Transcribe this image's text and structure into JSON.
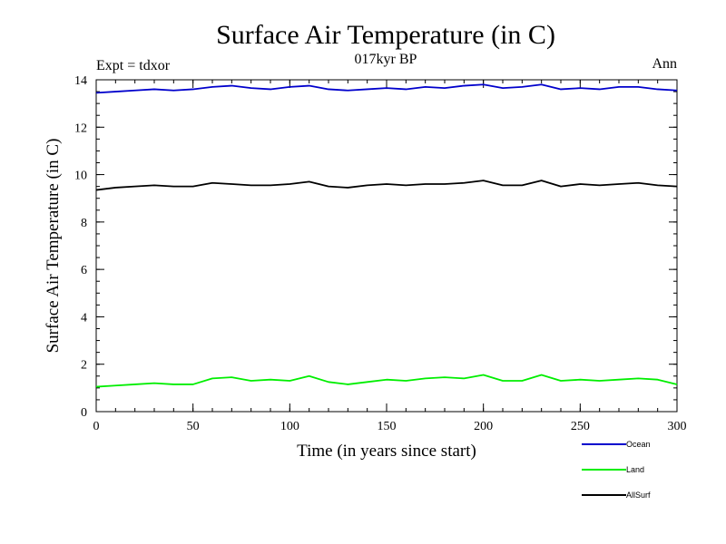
{
  "chart_data": {
    "type": "line",
    "title": "Surface Air Temperature (in C)",
    "subtitle": "017kyr BP",
    "annotation_left": "Expt = tdxor",
    "annotation_right": "Ann",
    "xlabel": "Time (in years since start)",
    "ylabel": "Surface Air Temperature (in C)",
    "xlim": [
      0,
      300
    ],
    "ylim": [
      0,
      14
    ],
    "xticks": [
      0,
      50,
      100,
      150,
      200,
      250,
      300
    ],
    "yticks": [
      0,
      2,
      4,
      6,
      8,
      10,
      12,
      14
    ],
    "grid": false,
    "legend_position": "bottom-right",
    "series": [
      {
        "name": "Ocean",
        "color": "#0000cc",
        "points": [
          [
            0,
            13.45
          ],
          [
            10,
            13.5
          ],
          [
            20,
            13.55
          ],
          [
            30,
            13.6
          ],
          [
            40,
            13.55
          ],
          [
            50,
            13.6
          ],
          [
            60,
            13.7
          ],
          [
            70,
            13.75
          ],
          [
            80,
            13.65
          ],
          [
            90,
            13.6
          ],
          [
            100,
            13.7
          ],
          [
            110,
            13.75
          ],
          [
            120,
            13.6
          ],
          [
            130,
            13.55
          ],
          [
            140,
            13.6
          ],
          [
            150,
            13.65
          ],
          [
            160,
            13.6
          ],
          [
            170,
            13.7
          ],
          [
            180,
            13.65
          ],
          [
            190,
            13.75
          ],
          [
            200,
            13.8
          ],
          [
            210,
            13.65
          ],
          [
            220,
            13.7
          ],
          [
            230,
            13.8
          ],
          [
            240,
            13.6
          ],
          [
            250,
            13.65
          ],
          [
            260,
            13.6
          ],
          [
            270,
            13.7
          ],
          [
            280,
            13.7
          ],
          [
            290,
            13.6
          ],
          [
            300,
            13.55
          ]
        ]
      },
      {
        "name": "Land",
        "color": "#00ee00",
        "points": [
          [
            0,
            1.05
          ],
          [
            10,
            1.1
          ],
          [
            20,
            1.15
          ],
          [
            30,
            1.2
          ],
          [
            40,
            1.15
          ],
          [
            50,
            1.15
          ],
          [
            60,
            1.4
          ],
          [
            70,
            1.45
          ],
          [
            80,
            1.3
          ],
          [
            90,
            1.35
          ],
          [
            100,
            1.3
          ],
          [
            110,
            1.5
          ],
          [
            120,
            1.25
          ],
          [
            130,
            1.15
          ],
          [
            140,
            1.25
          ],
          [
            150,
            1.35
          ],
          [
            160,
            1.3
          ],
          [
            170,
            1.4
          ],
          [
            180,
            1.45
          ],
          [
            190,
            1.4
          ],
          [
            200,
            1.55
          ],
          [
            210,
            1.3
          ],
          [
            220,
            1.3
          ],
          [
            230,
            1.55
          ],
          [
            240,
            1.3
          ],
          [
            250,
            1.35
          ],
          [
            260,
            1.3
          ],
          [
            270,
            1.35
          ],
          [
            280,
            1.4
          ],
          [
            290,
            1.35
          ],
          [
            300,
            1.15
          ]
        ]
      },
      {
        "name": "AllSurf",
        "color": "#000000",
        "points": [
          [
            0,
            9.35
          ],
          [
            10,
            9.45
          ],
          [
            20,
            9.5
          ],
          [
            30,
            9.55
          ],
          [
            40,
            9.5
          ],
          [
            50,
            9.5
          ],
          [
            60,
            9.65
          ],
          [
            70,
            9.6
          ],
          [
            80,
            9.55
          ],
          [
            90,
            9.55
          ],
          [
            100,
            9.6
          ],
          [
            110,
            9.7
          ],
          [
            120,
            9.5
          ],
          [
            130,
            9.45
          ],
          [
            140,
            9.55
          ],
          [
            150,
            9.6
          ],
          [
            160,
            9.55
          ],
          [
            170,
            9.6
          ],
          [
            180,
            9.6
          ],
          [
            190,
            9.65
          ],
          [
            200,
            9.75
          ],
          [
            210,
            9.55
          ],
          [
            220,
            9.55
          ],
          [
            230,
            9.75
          ],
          [
            240,
            9.5
          ],
          [
            250,
            9.6
          ],
          [
            260,
            9.55
          ],
          [
            270,
            9.6
          ],
          [
            280,
            9.65
          ],
          [
            290,
            9.55
          ],
          [
            300,
            9.5
          ]
        ]
      }
    ]
  }
}
